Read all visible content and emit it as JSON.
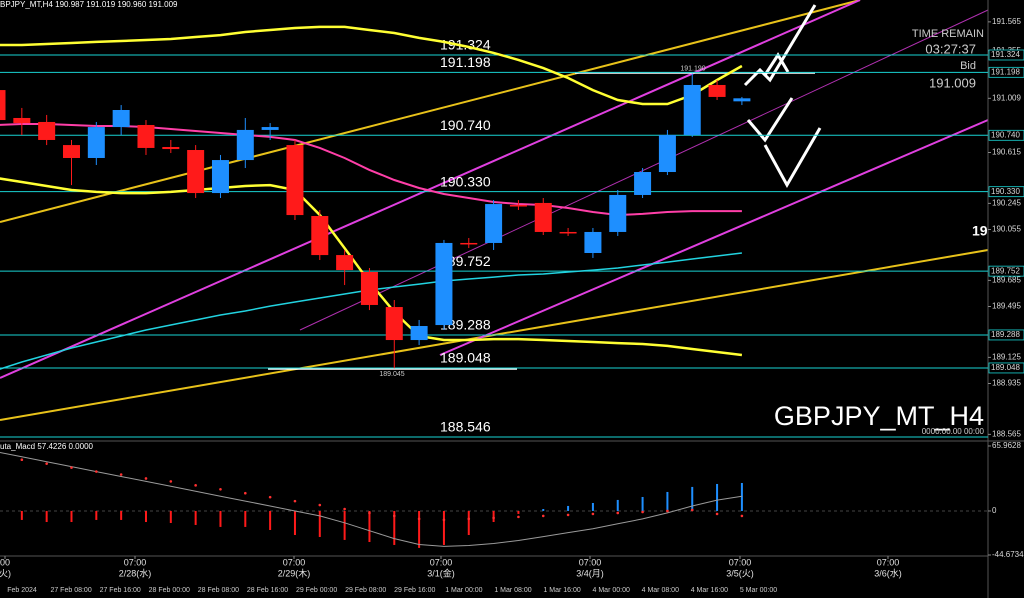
{
  "header": "BPJPY_MT,H4  190.987 191.019 190.960 191.009",
  "watermark": "GBPJPY_MT_H4",
  "timestamp": "0000.00.00 00:00",
  "time_remain_label": "TIME REMAIN",
  "time_remain": "03:27:37",
  "bid_label": "Bid",
  "bid": "191.009",
  "cut_label": "19",
  "time_axis": {
    "times": [
      "00",
      "07:00",
      "07:00",
      "07:00",
      "07:00",
      "07:00",
      "07:00"
    ],
    "dates": [
      "火)",
      "2/28(水)",
      "2/29(木)",
      "3/1(金)",
      "3/4(月)",
      "3/5(火)",
      "3/6(水)"
    ],
    "stamps": [
      "Feb 2024",
      "27 Feb 08:00",
      "27 Feb 16:00",
      "28 Feb 00:00",
      "28 Feb 08:00",
      "28 Feb 16:00",
      "29 Feb 00:00",
      "29 Feb 08:00",
      "29 Feb 16:00",
      "1 Mar 00:00",
      "1 Mar 08:00",
      "1 Mar 16:00",
      "4 Mar 00:00",
      "4 Mar 08:00",
      "4 Mar 16:00",
      "5 Mar 00:00"
    ]
  },
  "chart_data": [
    {
      "type": "candlestick",
      "ylim": [
        188.524,
        191.724
      ],
      "yticks": [
        191.565,
        191.355,
        191.009,
        190.615,
        190.245,
        190.055,
        189.685,
        189.495,
        189.125,
        188.935,
        188.565
      ],
      "up_color": "#1e8fff",
      "down_color": "#ff1a1a",
      "open": [
        191.069,
        190.866,
        190.837,
        190.669,
        190.575,
        190.8,
        190.815,
        190.655,
        190.633,
        190.32,
        190.56,
        190.779,
        190.669,
        190.153,
        189.869,
        189.746,
        189.491,
        189.251,
        189.36,
        189.957,
        189.957,
        190.233,
        190.248,
        190.037,
        189.884,
        190.037,
        190.306,
        190.473,
        190.742,
        191.106,
        190.987
      ],
      "high": [
        191.106,
        190.939,
        190.888,
        190.706,
        190.837,
        190.96,
        190.851,
        190.706,
        190.669,
        190.597,
        190.866,
        190.829,
        190.706,
        190.197,
        189.906,
        189.775,
        189.542,
        189.397,
        189.979,
        189.993,
        190.269,
        190.269,
        190.284,
        190.066,
        190.066,
        190.342,
        190.502,
        190.779,
        191.19,
        191.142,
        191.019
      ],
      "low": [
        190.815,
        190.742,
        190.669,
        190.378,
        190.524,
        190.742,
        190.597,
        190.611,
        190.284,
        190.284,
        190.502,
        190.706,
        190.124,
        189.833,
        189.651,
        189.469,
        189.045,
        189.215,
        189.324,
        189.92,
        189.906,
        190.197,
        190.015,
        190.008,
        189.848,
        190.008,
        190.284,
        190.451,
        190.728,
        190.997,
        190.96
      ],
      "close": [
        190.851,
        190.829,
        190.706,
        190.575,
        190.8,
        190.924,
        190.648,
        190.64,
        190.32,
        190.56,
        190.779,
        190.8,
        190.16,
        189.869,
        189.76,
        189.506,
        189.251,
        189.353,
        189.957,
        189.95,
        190.24,
        190.228,
        190.037,
        190.029,
        190.037,
        190.306,
        190.473,
        190.742,
        191.106,
        191.019,
        191.009
      ],
      "annotations": [
        {
          "value": 191.19,
          "label": "191.190"
        },
        {
          "value": 189.045,
          "label": "189.045"
        }
      ],
      "levels": [
        {
          "value": 191.324,
          "label": "191.324"
        },
        {
          "value": 191.198,
          "label": "191.198"
        },
        {
          "value": 190.74,
          "label": "190.740"
        },
        {
          "value": 190.33,
          "label": "190.330"
        },
        {
          "value": 189.752,
          "label": "189.752"
        },
        {
          "value": 189.288,
          "label": "189.288"
        },
        {
          "value": 189.048,
          "label": "189.048"
        },
        {
          "value": 188.546,
          "label": "188.546"
        }
      ],
      "level_color": "#19d3d3",
      "overlays": [
        {
          "color": "#ffff33",
          "width": 2.5,
          "values": [
            191.397,
            191.397,
            191.404,
            191.411,
            191.419,
            191.426,
            191.433,
            191.44,
            191.455,
            191.469,
            191.491,
            191.506,
            191.52,
            191.528,
            191.528,
            191.506,
            191.484,
            191.448,
            191.419,
            191.382,
            191.339,
            191.288,
            191.229,
            191.157,
            191.069,
            190.997,
            190.968,
            190.968,
            191.033,
            191.142,
            191.244
          ]
        },
        {
          "color": "#ffff33",
          "width": 2.5,
          "values": [
            190.429,
            190.4,
            190.371,
            190.342,
            190.328,
            190.32,
            190.32,
            190.328,
            190.342,
            190.357,
            190.371,
            190.378,
            190.342,
            190.16,
            189.92,
            189.673,
            189.455,
            189.28,
            189.251,
            189.251,
            189.258,
            189.258,
            189.251,
            189.244,
            189.237,
            189.229,
            189.222,
            189.208,
            189.186,
            189.164,
            189.142
          ]
        },
        {
          "color": "#ff3fa8",
          "width": 2,
          "values": [
            190.815,
            190.822,
            190.822,
            190.815,
            190.808,
            190.808,
            190.8,
            190.786,
            190.771,
            190.757,
            190.742,
            190.728,
            190.706,
            190.648,
            190.575,
            190.488,
            190.415,
            190.357,
            190.313,
            190.284,
            190.255,
            190.24,
            190.233,
            190.211,
            190.182,
            190.16,
            190.168,
            190.182,
            190.189,
            190.189,
            190.189
          ]
        },
        {
          "color": "#22d3e0",
          "width": 1.5,
          "values": [
            189.033,
            189.091,
            189.142,
            189.193,
            189.237,
            189.28,
            189.324,
            189.36,
            189.397,
            189.433,
            189.462,
            189.498,
            189.528,
            189.557,
            189.586,
            189.615,
            189.637,
            189.658,
            189.68,
            189.695,
            189.709,
            189.724,
            189.731,
            189.746,
            189.76,
            189.775,
            189.797,
            189.818,
            189.84,
            189.862,
            189.884
          ]
        }
      ]
    },
    {
      "type": "macd",
      "title": "uta_Macd 57.4226 0.0000",
      "ylim": [
        -45.7,
        70
      ],
      "yticks": [
        65.9628,
        0,
        -44.6734
      ],
      "pos_color": "#1e8fff",
      "neg_color": "#ff1a1a",
      "values": [
        -9.1,
        -9.1,
        -11.2,
        -11.2,
        -9.1,
        -9.1,
        -11.2,
        -12.2,
        -14.2,
        -16.2,
        -16.2,
        -19.3,
        -24.4,
        -26.4,
        -29.4,
        -31.5,
        -34.5,
        -37.5,
        -34.5,
        -24.4,
        -11.2,
        -3.0,
        2.0,
        5.1,
        8.1,
        11.2,
        14.2,
        19.3,
        24.4,
        27.4,
        28.4
      ],
      "line_color": "#9a9a9a",
      "line": [
        60,
        55,
        50,
        45,
        40,
        35,
        30,
        25,
        20,
        15,
        10,
        5,
        0,
        -5,
        -12,
        -20,
        -28,
        -34,
        -36,
        -35,
        -33,
        -30,
        -26,
        -22,
        -18,
        -13,
        -8,
        -2,
        5,
        11,
        15
      ],
      "dot_color": "#ff3030",
      "signal": [
        55,
        52,
        48,
        44,
        40,
        37,
        33,
        30,
        26,
        22,
        18,
        14,
        10,
        6,
        2,
        -2,
        -5,
        -8,
        -9,
        -8,
        -7,
        -6,
        -5,
        -4,
        -3,
        -2,
        -1,
        0,
        1,
        -3,
        -5
      ]
    }
  ]
}
